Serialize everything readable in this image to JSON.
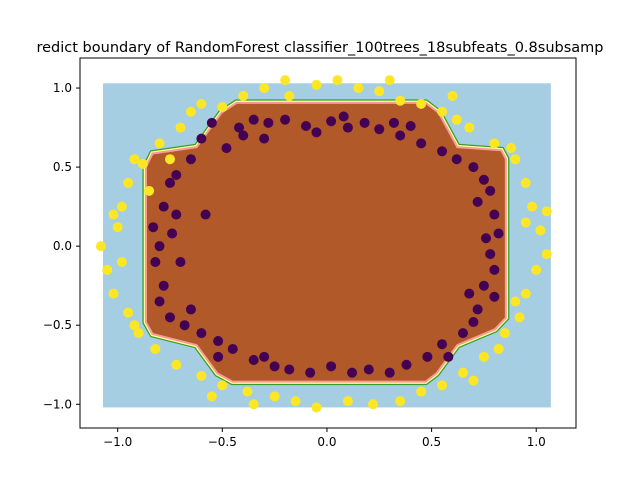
{
  "chart_data": {
    "type": "scatter",
    "title": "redict boundary of RandomForest classifier_100trees_18subfeats_0.8subsamp",
    "xlabel": "",
    "ylabel": "",
    "xlim": [
      -1.18,
      1.19
    ],
    "ylim": [
      -1.15,
      1.19
    ],
    "x_ticks": [
      -1.0,
      -0.5,
      0.0,
      0.5,
      1.0
    ],
    "x_tick_labels": [
      "−1.0",
      "−0.5",
      "0.0",
      "0.5",
      "1.0"
    ],
    "y_ticks": [
      -1.0,
      -0.5,
      0.0,
      0.5,
      1.0
    ],
    "y_tick_labels": [
      "−1.0",
      "−0.5",
      "0.0",
      "0.5",
      "1.0"
    ],
    "grid": false,
    "decision_regions": {
      "outer_extent": {
        "x": [
          -1.07,
          1.07
        ],
        "y": [
          -1.02,
          1.03
        ]
      },
      "inner_region_vertices": [
        [
          -0.5,
          0.84
        ],
        [
          -0.43,
          0.9
        ],
        [
          0.47,
          0.9
        ],
        [
          0.53,
          0.84
        ],
        [
          0.62,
          0.62
        ],
        [
          0.83,
          0.6
        ],
        [
          0.85,
          0.55
        ],
        [
          0.85,
          -0.45
        ],
        [
          0.8,
          -0.52
        ],
        [
          0.62,
          -0.62
        ],
        [
          0.52,
          -0.8
        ],
        [
          0.47,
          -0.85
        ],
        [
          -0.45,
          -0.85
        ],
        [
          -0.52,
          -0.8
        ],
        [
          -0.62,
          -0.62
        ],
        [
          -0.83,
          -0.55
        ],
        [
          -0.86,
          -0.48
        ],
        [
          -0.86,
          0.5
        ],
        [
          -0.83,
          0.58
        ],
        [
          -0.62,
          0.62
        ]
      ],
      "colors": {
        "outer_class": "#a6cee3",
        "inner_class": "#b15928",
        "transition_band": [
          "#fb9a99",
          "#ffff99",
          "#33a02c"
        ]
      }
    },
    "series": [
      {
        "class": 0,
        "color": "#440154",
        "points": [
          [
            -0.55,
            0.78
          ],
          [
            -0.42,
            0.75
          ],
          [
            -0.35,
            0.8
          ],
          [
            -0.28,
            0.78
          ],
          [
            -0.2,
            0.8
          ],
          [
            -0.1,
            0.76
          ],
          [
            0.02,
            0.79
          ],
          [
            0.1,
            0.75
          ],
          [
            0.18,
            0.78
          ],
          [
            0.25,
            0.74
          ],
          [
            0.32,
            0.78
          ],
          [
            0.4,
            0.76
          ],
          [
            -0.6,
            0.68
          ],
          [
            -0.48,
            0.62
          ],
          [
            -0.3,
            0.68
          ],
          [
            -0.05,
            0.72
          ],
          [
            0.45,
            0.65
          ],
          [
            0.55,
            0.6
          ],
          [
            0.62,
            0.55
          ],
          [
            0.7,
            0.5
          ],
          [
            0.75,
            0.42
          ],
          [
            0.78,
            0.35
          ],
          [
            0.8,
            0.2
          ],
          [
            0.76,
            0.05
          ],
          [
            0.78,
            -0.05
          ],
          [
            0.8,
            -0.15
          ],
          [
            0.75,
            -0.25
          ],
          [
            0.8,
            -0.32
          ],
          [
            0.72,
            -0.4
          ],
          [
            0.7,
            -0.48
          ],
          [
            0.65,
            -0.55
          ],
          [
            0.55,
            -0.62
          ],
          [
            0.48,
            -0.7
          ],
          [
            0.38,
            -0.75
          ],
          [
            0.3,
            -0.8
          ],
          [
            0.2,
            -0.78
          ],
          [
            0.12,
            -0.8
          ],
          [
            0.02,
            -0.76
          ],
          [
            -0.08,
            -0.8
          ],
          [
            -0.18,
            -0.78
          ],
          [
            -0.25,
            -0.76
          ],
          [
            -0.35,
            -0.72
          ],
          [
            -0.45,
            -0.65
          ],
          [
            -0.52,
            -0.6
          ],
          [
            -0.6,
            -0.55
          ],
          [
            -0.68,
            -0.5
          ],
          [
            -0.75,
            -0.45
          ],
          [
            -0.8,
            -0.35
          ],
          [
            -0.78,
            -0.25
          ],
          [
            -0.82,
            -0.1
          ],
          [
            -0.8,
            0.0
          ],
          [
            -0.83,
            0.12
          ],
          [
            -0.78,
            0.25
          ],
          [
            -0.75,
            0.4
          ],
          [
            -0.72,
            0.45
          ],
          [
            -0.65,
            0.55
          ],
          [
            -0.7,
            -0.1
          ],
          [
            -0.72,
            0.2
          ],
          [
            -0.58,
            0.2
          ],
          [
            -0.65,
            -0.4
          ],
          [
            0.72,
            0.28
          ],
          [
            0.68,
            -0.3
          ],
          [
            -0.52,
            -0.7
          ],
          [
            0.58,
            -0.7
          ],
          [
            -0.4,
            0.7
          ],
          [
            0.08,
            0.82
          ],
          [
            -0.74,
            0.08
          ],
          [
            0.82,
            0.08
          ],
          [
            -0.3,
            -0.7
          ],
          [
            0.35,
            0.7
          ]
        ]
      },
      {
        "class": 1,
        "color": "#fde725",
        "points": [
          [
            -0.6,
            0.9
          ],
          [
            -0.5,
            0.88
          ],
          [
            -0.4,
            0.95
          ],
          [
            -0.3,
            1.0
          ],
          [
            -0.18,
            0.95
          ],
          [
            -0.05,
            1.02
          ],
          [
            0.05,
            1.05
          ],
          [
            0.15,
            1.0
          ],
          [
            0.25,
            0.98
          ],
          [
            0.35,
            0.92
          ],
          [
            0.45,
            0.9
          ],
          [
            0.55,
            0.85
          ],
          [
            0.62,
            0.8
          ],
          [
            0.68,
            0.75
          ],
          [
            0.8,
            0.65
          ],
          [
            0.9,
            0.55
          ],
          [
            0.95,
            0.4
          ],
          [
            0.98,
            0.25
          ],
          [
            1.02,
            0.1
          ],
          [
            1.05,
            -0.05
          ],
          [
            1.0,
            -0.15
          ],
          [
            0.95,
            -0.3
          ],
          [
            0.92,
            -0.45
          ],
          [
            0.85,
            -0.55
          ],
          [
            0.75,
            -0.7
          ],
          [
            0.65,
            -0.8
          ],
          [
            0.55,
            -0.88
          ],
          [
            0.45,
            -0.92
          ],
          [
            0.35,
            -0.98
          ],
          [
            0.22,
            -1.0
          ],
          [
            0.1,
            -0.98
          ],
          [
            -0.05,
            -1.02
          ],
          [
            -0.15,
            -0.98
          ],
          [
            -0.25,
            -0.95
          ],
          [
            -0.38,
            -0.92
          ],
          [
            -0.5,
            -0.88
          ],
          [
            -0.6,
            -0.82
          ],
          [
            -0.72,
            -0.75
          ],
          [
            -0.82,
            -0.65
          ],
          [
            -0.9,
            -0.55
          ],
          [
            -0.95,
            -0.42
          ],
          [
            -1.02,
            -0.3
          ],
          [
            -1.05,
            -0.15
          ],
          [
            -1.08,
            0.0
          ],
          [
            -1.0,
            0.12
          ],
          [
            -0.98,
            0.25
          ],
          [
            -0.95,
            0.4
          ],
          [
            -0.88,
            0.52
          ],
          [
            -0.8,
            0.65
          ],
          [
            -0.7,
            0.75
          ],
          [
            -0.75,
            0.55
          ],
          [
            -0.92,
            0.55
          ],
          [
            -1.02,
            0.2
          ],
          [
            0.9,
            -0.35
          ],
          [
            0.95,
            0.15
          ],
          [
            -0.92,
            -0.5
          ],
          [
            0.7,
            -0.85
          ],
          [
            -0.65,
            0.85
          ],
          [
            0.3,
            1.05
          ],
          [
            -0.35,
            -1.0
          ],
          [
            0.88,
            0.62
          ],
          [
            -0.98,
            -0.1
          ],
          [
            0.6,
            0.95
          ],
          [
            -0.55,
            -0.95
          ],
          [
            1.05,
            0.22
          ],
          [
            -0.85,
            0.35
          ],
          [
            0.82,
            -0.65
          ],
          [
            -0.2,
            1.05
          ]
        ]
      }
    ]
  }
}
